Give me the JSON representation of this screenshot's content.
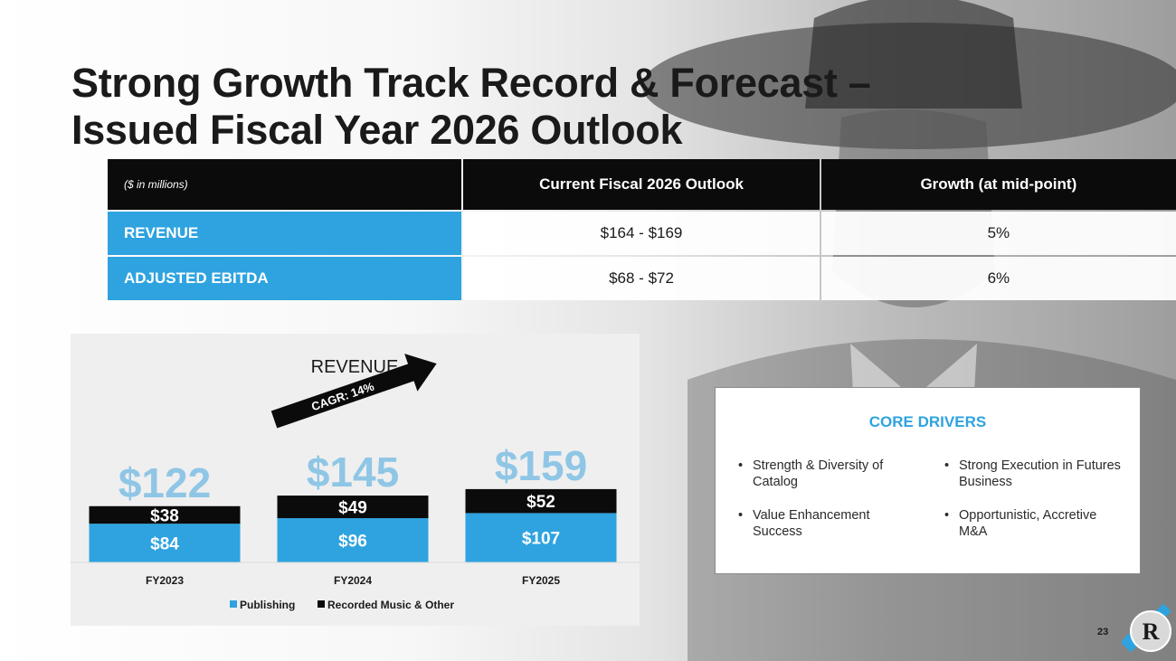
{
  "slide": {
    "title_line1": "Strong Growth Track Record & Forecast –",
    "title_line2": "Issued Fiscal Year 2026 Outlook",
    "page_number": "23",
    "logo_letter": "R"
  },
  "outlook_table": {
    "header": {
      "unit_note": "($ in millions)",
      "col2": "Current Fiscal 2026 Outlook",
      "col3": "Growth (at mid-point)"
    },
    "rows": [
      {
        "label": "REVENUE",
        "outlook": "$164 - $169",
        "growth": "5%"
      },
      {
        "label": "ADJUSTED EBITDA",
        "outlook": "$68 - $72",
        "growth": "6%"
      }
    ]
  },
  "chart_data": {
    "type": "bar",
    "stacked": true,
    "title": "REVENUE",
    "categories": [
      "FY2023",
      "FY2024",
      "FY2025"
    ],
    "series": [
      {
        "name": "Publishing",
        "values": [
          84,
          96,
          107
        ],
        "labels": [
          "$84",
          "$96",
          "$107"
        ],
        "color": "#2ea3df"
      },
      {
        "name": "Recorded Music & Other",
        "values": [
          38,
          49,
          52
        ],
        "labels": [
          "$38",
          "$49",
          "$52"
        ],
        "color": "#0b0b0b"
      }
    ],
    "totals": [
      122,
      145,
      159
    ],
    "total_labels": [
      "$122",
      "$145",
      "$159"
    ],
    "annotation": "CAGR: 14%",
    "legend_position": "bottom",
    "grid": false
  },
  "core_drivers": {
    "title": "CORE DRIVERS",
    "items": [
      "Strength & Diversity of Catalog",
      "Strong Execution in Futures Business",
      "Value Enhancement Success",
      "Opportunistic, Accretive M&A"
    ]
  },
  "colors": {
    "accent_blue": "#2ea3df",
    "dark": "#0b0b0b",
    "total_label_blue": "#8fc6e6"
  }
}
